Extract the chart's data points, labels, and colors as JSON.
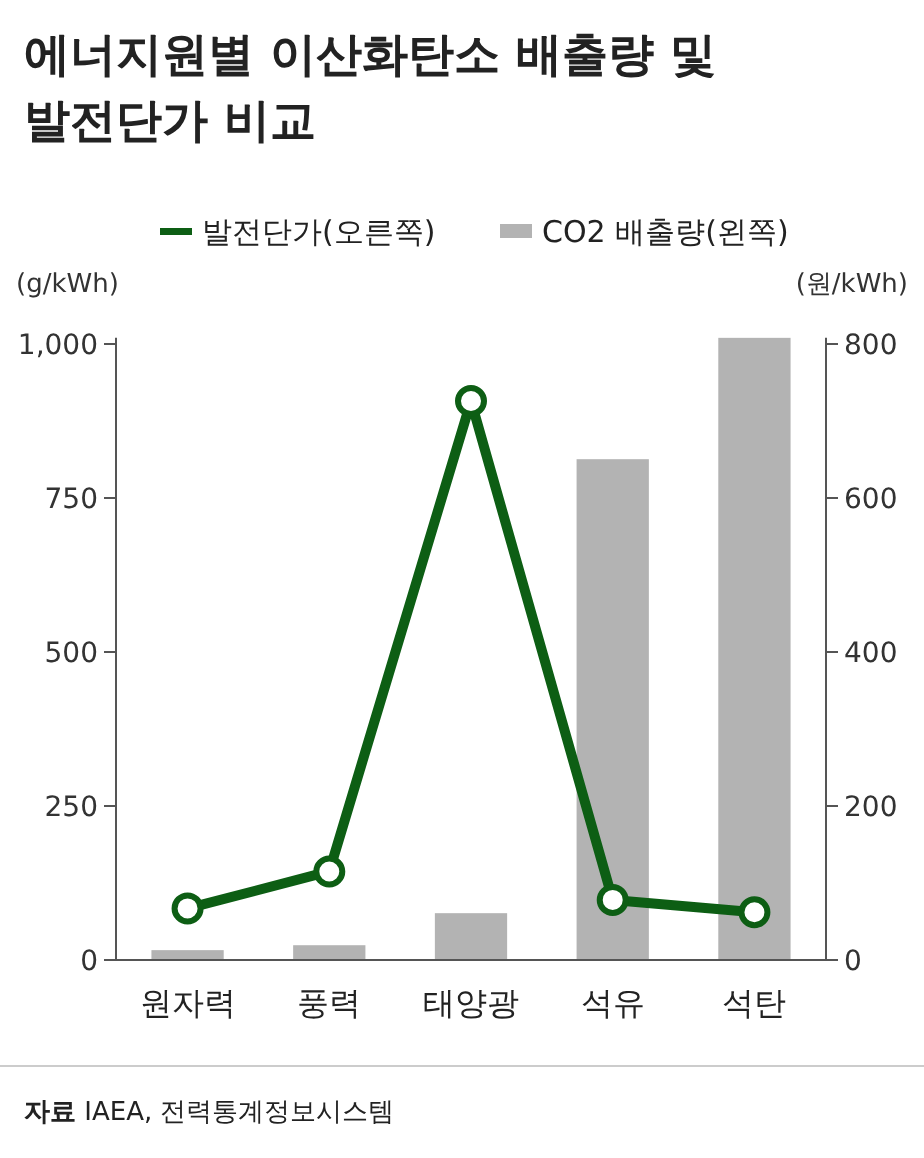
{
  "chart_data": {
    "type": "bar",
    "title": "에너지원별 이산화탄소 배출량 및\n발전단가 비교",
    "categories": [
      "원자력",
      "풍력",
      "태양광",
      "석유",
      "석탄"
    ],
    "series": [
      {
        "name": "발전단가(오른쪽)",
        "type": "line",
        "axis": "y2",
        "color": "#0d5e14",
        "values": [
          67,
          115,
          726,
          78,
          62
        ]
      },
      {
        "name": "CO2 배출량(왼쪽)",
        "color": "#b3b3b3",
        "values": [
          16,
          24,
          76,
          813,
          1010
        ]
      }
    ],
    "ylabel": "(g/kWh)",
    "y2label": "(원/kWh)",
    "ylim": [
      0,
      1010
    ],
    "yticks": [
      0,
      250,
      500,
      750,
      {
        "value": 1000,
        "label": "1,000"
      }
    ],
    "y2lim": [
      0,
      808
    ],
    "y2ticks": [
      0,
      200,
      400,
      600,
      800
    ],
    "legend": "top",
    "marker": "circle",
    "grid": false,
    "annotations": [
      "자료 IAEA, 전력통계정보시스템"
    ]
  }
}
